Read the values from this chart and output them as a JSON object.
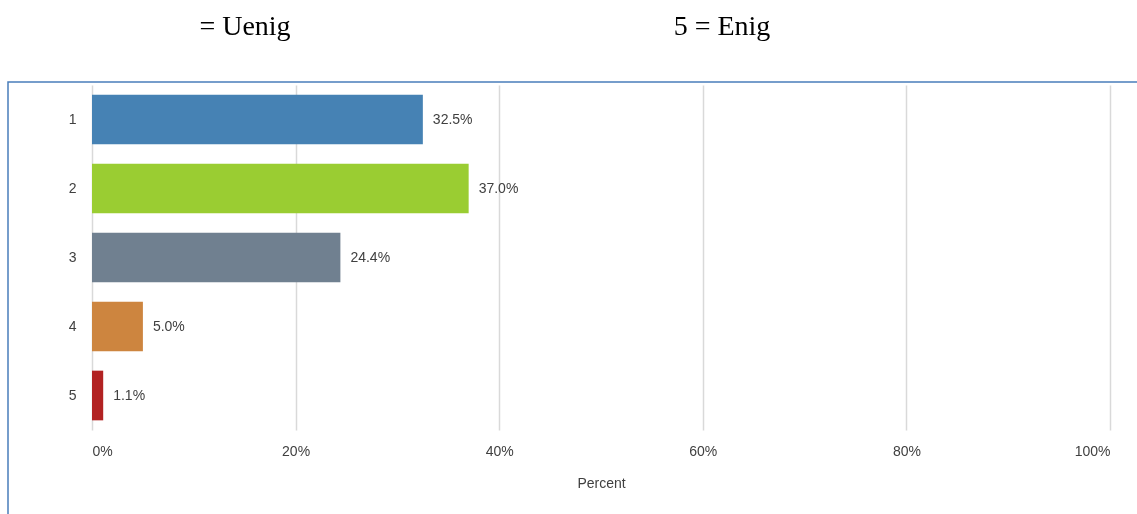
{
  "chart_data": {
    "type": "bar",
    "orientation": "horizontal",
    "annotations": [
      "= Uenig",
      "5 = Enig"
    ],
    "xlabel": "Percent",
    "categories": [
      "1",
      "2",
      "3",
      "4",
      "5"
    ],
    "values": [
      32.5,
      37.0,
      24.4,
      5.0,
      1.1
    ],
    "value_labels": [
      "32.5%",
      "37.0%",
      "24.4%",
      "5.0%",
      "1.1%"
    ],
    "colors": [
      "#4682b4",
      "#9acd32",
      "#708090",
      "#cd853f",
      "#b22222"
    ],
    "xlim": [
      0,
      100
    ],
    "xticks": [
      {
        "value": 0,
        "label": "0%"
      },
      {
        "value": 20,
        "label": "20%"
      },
      {
        "value": 40,
        "label": "40%"
      },
      {
        "value": 60,
        "label": "60%"
      },
      {
        "value": 80,
        "label": "80%"
      },
      {
        "value": 100,
        "label": "100%"
      }
    ],
    "grid": "x"
  }
}
